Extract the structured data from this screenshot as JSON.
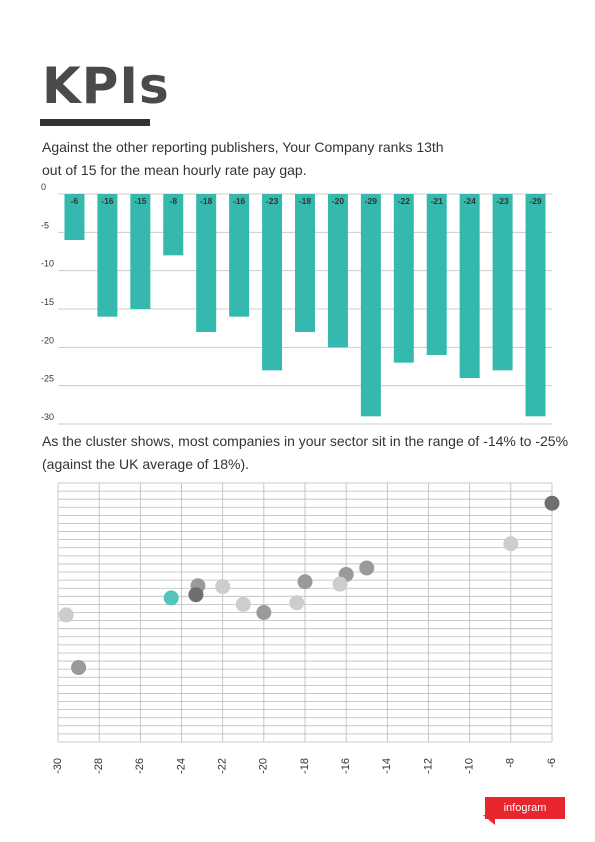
{
  "title": "KPIs",
  "intro_text": "Against the other reporting publishers, Your Company ranks 13th out of 15 for the mean hourly rate pay gap.",
  "cluster_text": "As the cluster shows, most companies in your sector sit in the range of -14% to -25% (against the UK average of 18%).",
  "brand": "infogram",
  "colors": {
    "bar": "#35b8ad",
    "highlight": "#54c4bb",
    "badge": "#e8262d",
    "text": "#333333"
  },
  "chart_data": [
    {
      "type": "bar",
      "values": [
        -6,
        -16,
        -15,
        -8,
        -18,
        -16,
        -23,
        -18,
        -20,
        -29,
        -22,
        -21,
        -24,
        -23,
        -29
      ],
      "data_labels": [
        "-6",
        "-16",
        "-15",
        "-8",
        "-18",
        "-16",
        "-23",
        "-18",
        "-20",
        "-29",
        "-22",
        "-21",
        "-24",
        "-23",
        "-29"
      ],
      "ylim": [
        -30,
        0
      ],
      "yticks": [
        0,
        -5,
        -10,
        -15,
        -20,
        -25,
        -30
      ],
      "ytick_labels": [
        "0",
        "-5",
        "-10",
        "-15",
        "-20",
        "-25",
        "-30"
      ],
      "grid": true,
      "xlabel": "",
      "ylabel": "",
      "title": ""
    },
    {
      "type": "scatter",
      "xlim": [
        -30,
        -6
      ],
      "xticks": [
        -30,
        -28,
        -26,
        -24,
        -22,
        -20,
        -18,
        -16,
        -14,
        -12,
        -10,
        -8,
        -6
      ],
      "xtick_labels": [
        "-30",
        "-28",
        "-26",
        "-24",
        "-22",
        "-20",
        "-18",
        "-16",
        "-14",
        "-12",
        "-10",
        "-8",
        "-6"
      ],
      "ylim": [
        0,
        32
      ],
      "grid": true,
      "points": [
        {
          "x": -6,
          "y": 29.5,
          "shade": "dark"
        },
        {
          "x": -8,
          "y": 24.5,
          "shade": "light"
        },
        {
          "x": -15,
          "y": 21.5,
          "shade": "medium"
        },
        {
          "x": -16,
          "y": 20.7,
          "shade": "medium"
        },
        {
          "x": -16.3,
          "y": 19.5,
          "shade": "light"
        },
        {
          "x": -18,
          "y": 19.8,
          "shade": "medium"
        },
        {
          "x": -18.4,
          "y": 17.2,
          "shade": "light"
        },
        {
          "x": -20,
          "y": 16.0,
          "shade": "medium"
        },
        {
          "x": -21,
          "y": 17.0,
          "shade": "light"
        },
        {
          "x": -22,
          "y": 19.2,
          "shade": "light"
        },
        {
          "x": -23.2,
          "y": 19.3,
          "shade": "medium"
        },
        {
          "x": -23.3,
          "y": 18.2,
          "shade": "dark"
        },
        {
          "x": -24.5,
          "y": 17.8,
          "shade": "highlight"
        },
        {
          "x": -29.6,
          "y": 15.7,
          "shade": "light"
        },
        {
          "x": -29,
          "y": 9.2,
          "shade": "medium"
        }
      ],
      "xlabel": "",
      "ylabel": "",
      "title": ""
    }
  ]
}
